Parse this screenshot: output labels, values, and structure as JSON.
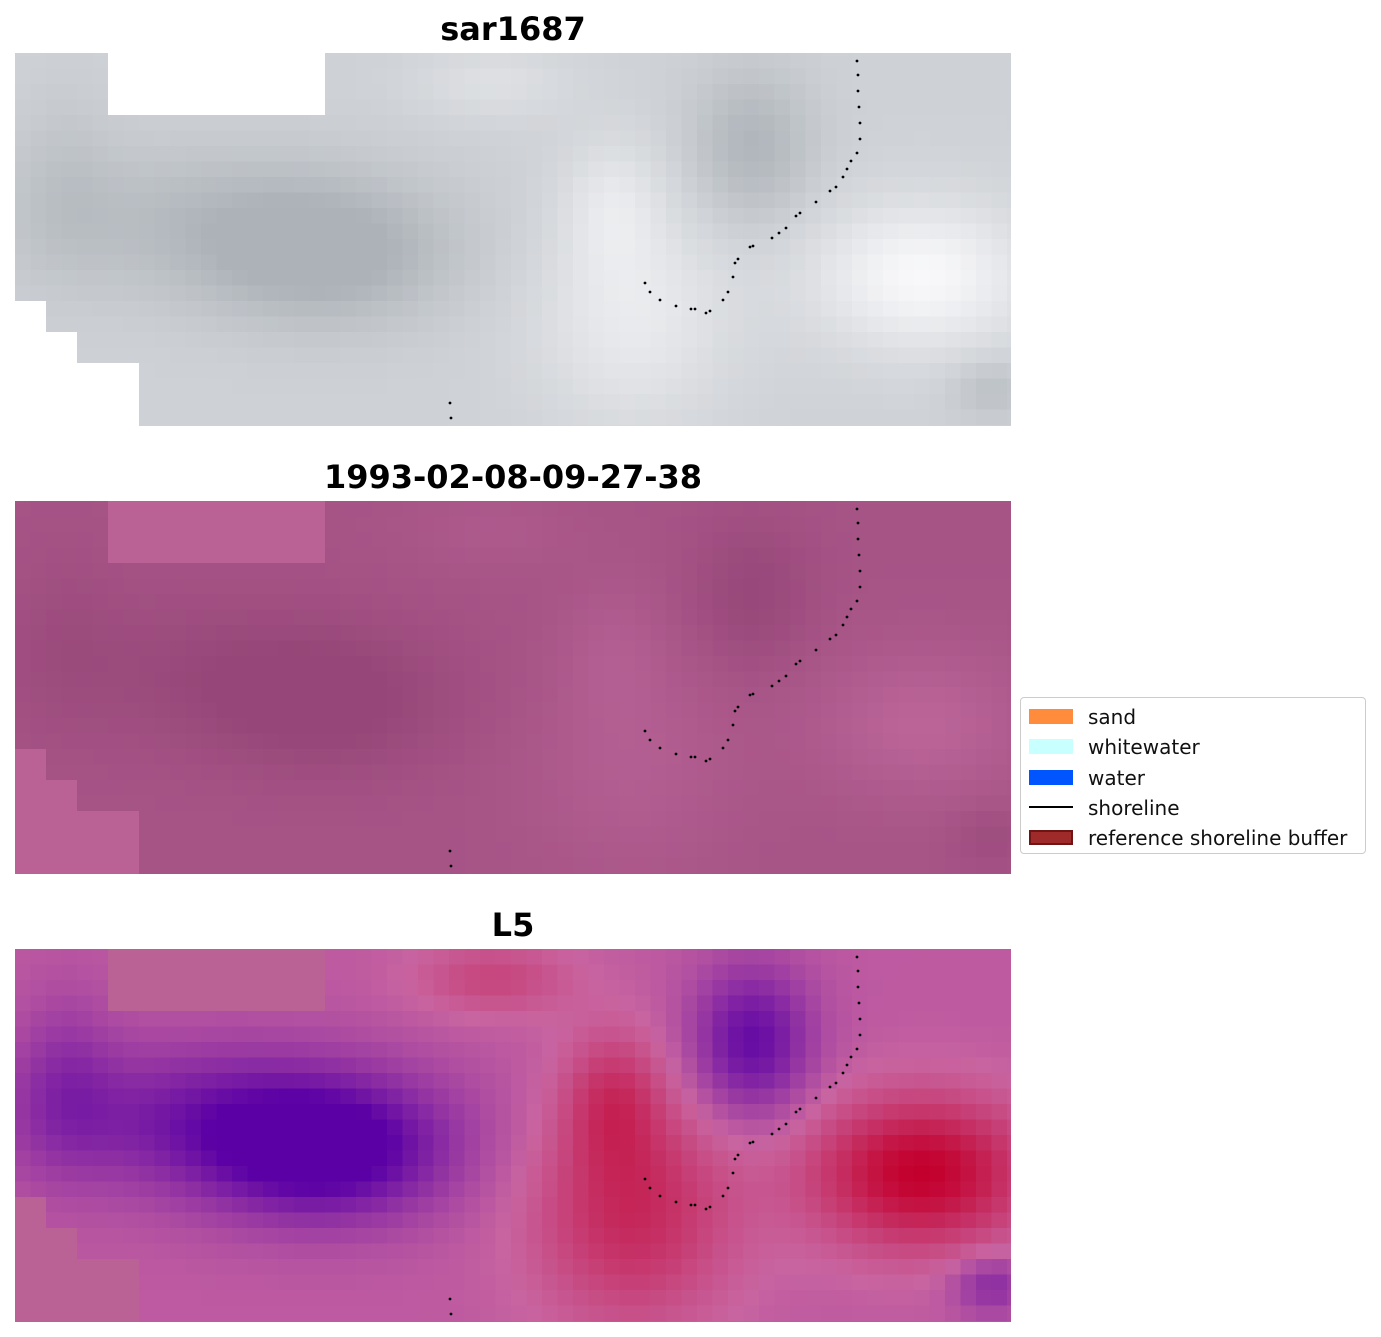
{
  "panels": [
    {
      "title": "sar1687",
      "colormap": "grey"
    },
    {
      "title": "1993-02-08-09-27-38",
      "colormap": "magenta"
    },
    {
      "title": "L5",
      "colormap": "purple-red"
    }
  ],
  "legend": {
    "items": [
      {
        "label": "sand",
        "type": "patch",
        "color": "#ff8c3c"
      },
      {
        "label": "whitewater",
        "type": "patch",
        "color": "#c8ffff"
      },
      {
        "label": "water",
        "type": "patch",
        "color": "#0055ff"
      },
      {
        "label": "shoreline",
        "type": "line",
        "color": "#000000"
      },
      {
        "label": "reference shoreline buffer",
        "type": "patch",
        "color": "#9e2a2a"
      }
    ]
  }
}
